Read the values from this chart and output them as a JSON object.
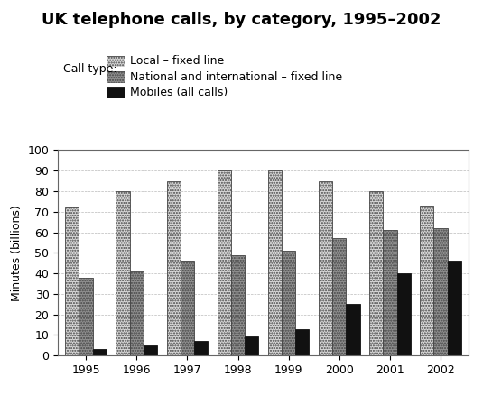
{
  "title": "UK telephone calls, by category, 1995–2002",
  "ylabel": "Minutes (billions)",
  "years": [
    1995,
    1996,
    1997,
    1998,
    1999,
    2000,
    2001,
    2002
  ],
  "local_fixed": [
    72,
    80,
    85,
    90,
    90,
    85,
    80,
    73
  ],
  "national_fixed": [
    38,
    41,
    46,
    49,
    51,
    57,
    61,
    62
  ],
  "mobiles": [
    3,
    5,
    7,
    9.5,
    13,
    25,
    40,
    46
  ],
  "ylim": [
    0,
    100
  ],
  "yticks": [
    0,
    10,
    20,
    30,
    40,
    50,
    60,
    70,
    80,
    90,
    100
  ],
  "legend_labels": [
    "Local – fixed line",
    "National and international – fixed line",
    "Mobiles (all calls)"
  ],
  "legend_title": "Call type:",
  "bar_width": 0.27,
  "title_fontsize": 13,
  "label_fontsize": 9,
  "tick_fontsize": 9
}
